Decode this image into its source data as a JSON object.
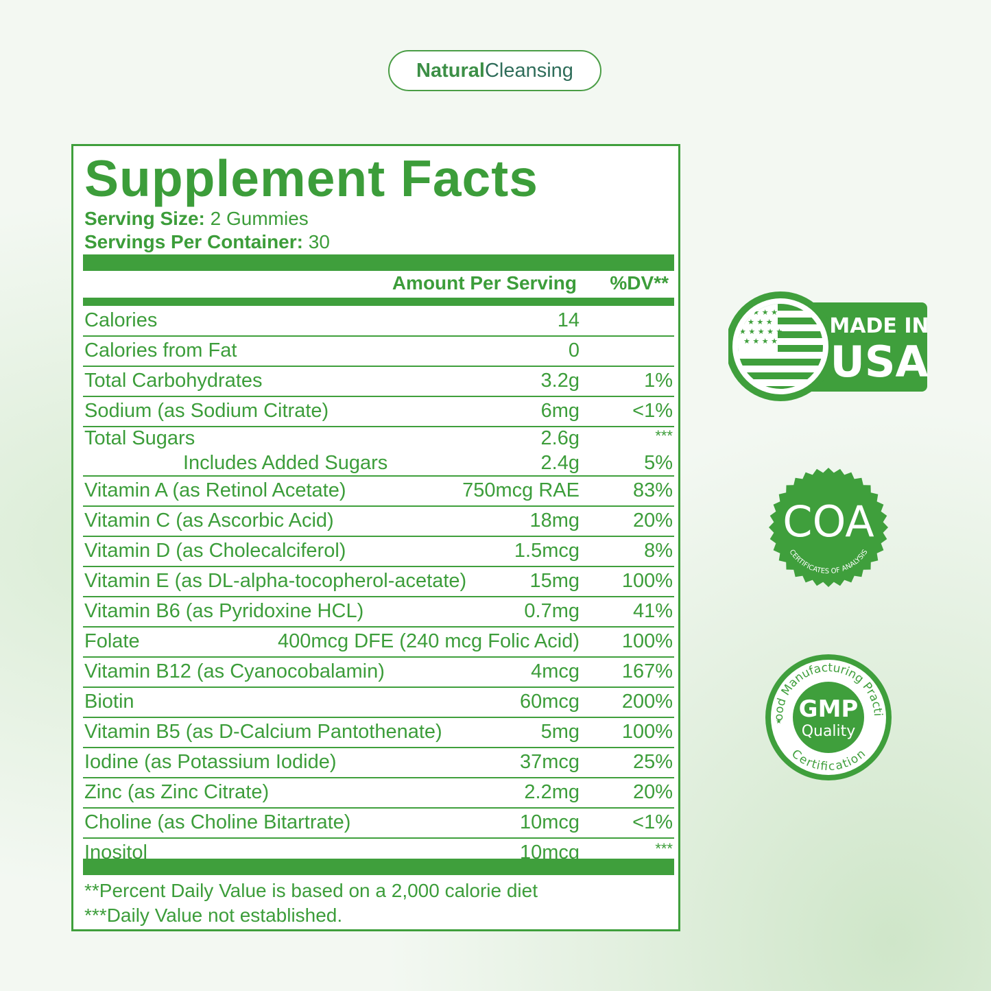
{
  "brand": {
    "part1": "Natural",
    "part2": "Cleansing"
  },
  "facts": {
    "title": "Supplement Facts",
    "serving_size_label": "Serving Size:",
    "serving_size_value": " 2 Gummies",
    "servings_label": "Servings Per Container:",
    "servings_value": " 30",
    "header_amount": "Amount Per Serving",
    "header_dv": "%DV**",
    "rows": [
      {
        "name": "Calories",
        "amount": "14",
        "dv": ""
      },
      {
        "name": "Calories from Fat",
        "amount": "0",
        "dv": ""
      },
      {
        "name": "Total Carbohydrates",
        "amount": "3.2g",
        "dv": "1%"
      },
      {
        "name": "Sodium (as Sodium Citrate)",
        "amount": "6mg",
        "dv": "<1%"
      },
      {
        "name": "Total Sugars",
        "amount": "2.6g",
        "dv": "***",
        "sub_name": "Includes Added Sugars",
        "sub_amount": "2.4g",
        "sub_dv": "5%"
      },
      {
        "name": "Vitamin A (as Retinol Acetate)",
        "amount": "750mcg RAE",
        "dv": "83%"
      },
      {
        "name": "Vitamin C (as Ascorbic Acid)",
        "amount": "18mg",
        "dv": "20%"
      },
      {
        "name": "Vitamin D (as Cholecalciferol)",
        "amount": "1.5mcg",
        "dv": "8%"
      },
      {
        "name": "Vitamin E (as DL-alpha-tocopherol-acetate)",
        "amount": "15mg",
        "dv": "100%"
      },
      {
        "name": "Vitamin B6 (as Pyridoxine HCL)",
        "amount": "0.7mg",
        "dv": "41%"
      },
      {
        "name": "Folate",
        "amount": "400mcg DFE (240 mcg Folic Acid)",
        "dv": "100%"
      },
      {
        "name": "Vitamin B12 (as Cyanocobalamin)",
        "amount": "4mcg",
        "dv": "167%"
      },
      {
        "name": "Biotin",
        "amount": "60mcg",
        "dv": "200%"
      },
      {
        "name": "Vitamin B5 (as D-Calcium Pantothenate)",
        "amount": "5mg",
        "dv": "100%"
      },
      {
        "name": "Iodine (as Potassium Iodide)",
        "amount": "37mcg",
        "dv": "25%"
      },
      {
        "name": "Zinc (as Zinc Citrate)",
        "amount": "2.2mg",
        "dv": "20%"
      },
      {
        "name": "Choline (as Choline Bitartrate)",
        "amount": "10mcg",
        "dv": "<1%"
      },
      {
        "name": "Inositol",
        "amount": "10mcg",
        "dv": "***"
      }
    ],
    "footnote1": "**Percent Daily Value is based on a 2,000 calorie diet",
    "footnote2": "***Daily Value not established."
  },
  "badges": {
    "usa_line1": "MADE IN",
    "usa_line2": "USA",
    "coa_main": "COA",
    "coa_arc": "CERTIFICATES OF ANALYSIS",
    "gmp_main": "GMP",
    "gmp_sub": "Quality",
    "gmp_arc_top": "Good Manufacturing Practice",
    "gmp_arc_bottom": "Certification"
  },
  "colors": {
    "accent": "#3f9f3c",
    "brand_text": "#2f6d5a"
  }
}
